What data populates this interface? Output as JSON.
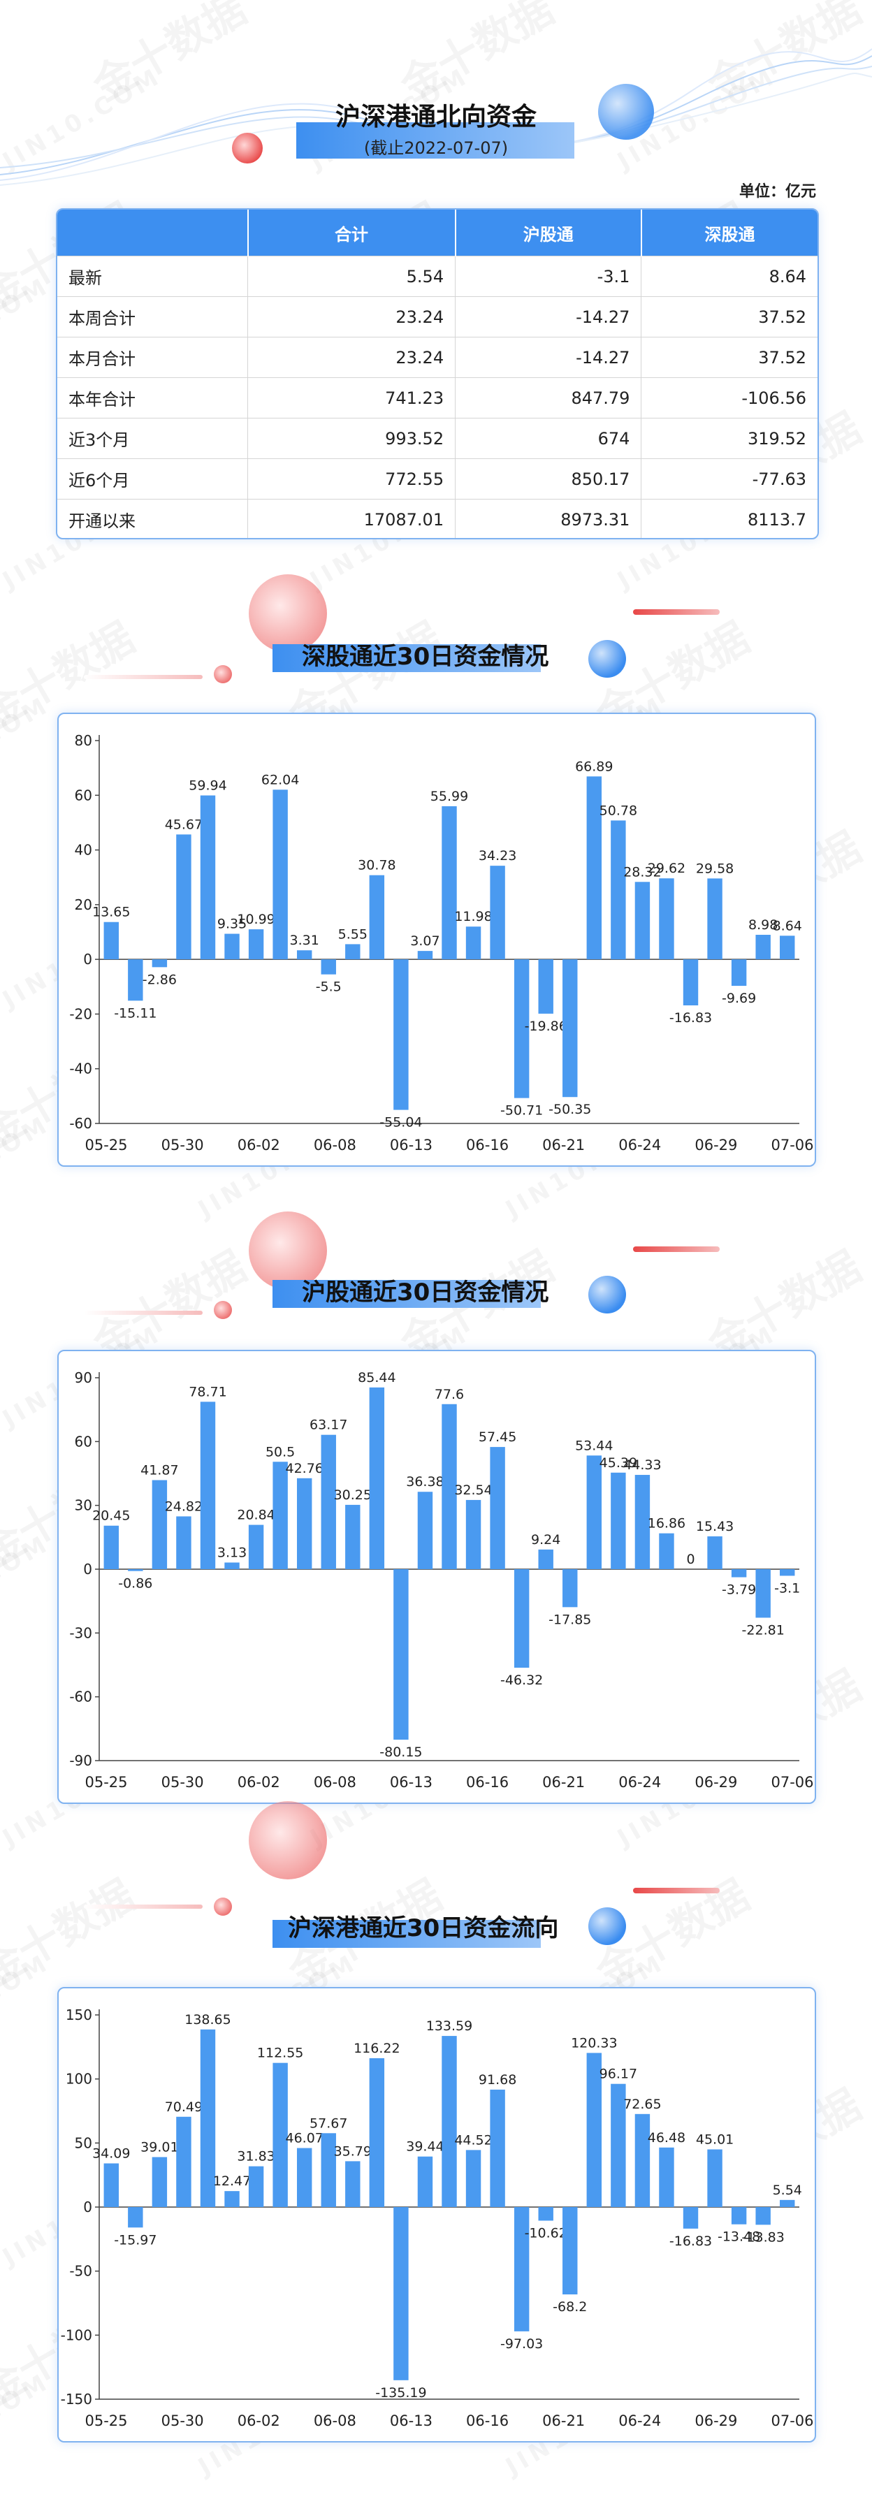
{
  "header": {
    "title": "沪深港通北向资金",
    "subtitle": "(截止2022-07-07)",
    "unit": "单位：亿元"
  },
  "table": {
    "columns": [
      "",
      "合计",
      "沪股通",
      "深股通"
    ],
    "rows": [
      {
        "label": "最新",
        "total": "5.54",
        "sh": "-3.1",
        "sz": "8.64"
      },
      {
        "label": "本周合计",
        "total": "23.24",
        "sh": "-14.27",
        "sz": "37.52"
      },
      {
        "label": "本月合计",
        "total": "23.24",
        "sh": "-14.27",
        "sz": "37.52"
      },
      {
        "label": "本年合计",
        "total": "741.23",
        "sh": "847.79",
        "sz": "-106.56"
      },
      {
        "label": "近3个月",
        "total": "993.52",
        "sh": "674",
        "sz": "319.52"
      },
      {
        "label": "近6个月",
        "total": "772.55",
        "sh": "850.17",
        "sz": "-77.63"
      },
      {
        "label": "开通以来",
        "total": "17087.01",
        "sh": "8973.31",
        "sz": "8113.7"
      }
    ]
  },
  "watermark": {
    "brand": "金十数据",
    "site": "JIN10.COM"
  },
  "colors": {
    "bar": "#4a9af0",
    "accent_red": "#e84848",
    "border": "#7fb2f0"
  },
  "chart_data": [
    {
      "type": "bar",
      "title": "深股通近30日资金情况",
      "x_tick_labels": [
        "05-25",
        "05-30",
        "06-02",
        "06-08",
        "06-13",
        "06-16",
        "06-21",
        "06-24",
        "06-29",
        "07-06"
      ],
      "values": [
        13.65,
        -15.11,
        -2.86,
        45.67,
        59.94,
        9.35,
        10.99,
        62.04,
        3.31,
        -5.5,
        5.55,
        30.78,
        -55.04,
        3.07,
        55.99,
        11.98,
        34.23,
        -50.71,
        -19.86,
        -50.35,
        66.89,
        50.78,
        28.32,
        29.62,
        -16.83,
        29.58,
        -9.69,
        8.98,
        8.64
      ],
      "yticks": [
        80,
        60,
        40,
        20,
        0,
        -20,
        -40,
        -60
      ],
      "ylim": [
        -60,
        80
      ]
    },
    {
      "type": "bar",
      "title": "沪股通近30日资金情况",
      "x_tick_labels": [
        "05-25",
        "05-30",
        "06-02",
        "06-08",
        "06-13",
        "06-16",
        "06-21",
        "06-24",
        "06-29",
        "07-06"
      ],
      "values": [
        20.45,
        -0.86,
        41.87,
        24.82,
        78.71,
        3.13,
        20.84,
        50.5,
        42.76,
        63.17,
        30.25,
        85.44,
        -80.15,
        36.38,
        77.6,
        32.54,
        57.45,
        -46.32,
        9.24,
        -17.85,
        53.44,
        45.39,
        44.33,
        16.86,
        0,
        15.43,
        -3.79,
        -22.81,
        -3.1
      ],
      "yticks": [
        90,
        60,
        30,
        0,
        -30,
        -60,
        -90
      ],
      "ylim": [
        -90,
        90
      ]
    },
    {
      "type": "bar",
      "title": "沪深港通近30日资金流向",
      "x_tick_labels": [
        "05-25",
        "05-30",
        "06-02",
        "06-08",
        "06-13",
        "06-16",
        "06-21",
        "06-24",
        "06-29",
        "07-06"
      ],
      "values": [
        34.09,
        -15.97,
        39.01,
        70.49,
        138.65,
        12.47,
        31.83,
        112.55,
        46.07,
        57.67,
        35.79,
        116.22,
        -135.19,
        39.44,
        133.59,
        44.52,
        91.68,
        -97.03,
        -10.62,
        -68.2,
        120.33,
        96.17,
        72.65,
        46.48,
        -16.83,
        45.01,
        -13.48,
        -13.83,
        5.54
      ],
      "yticks": [
        150,
        100,
        50,
        0,
        -50,
        -100,
        -150
      ],
      "ylim": [
        -150,
        150
      ]
    }
  ]
}
